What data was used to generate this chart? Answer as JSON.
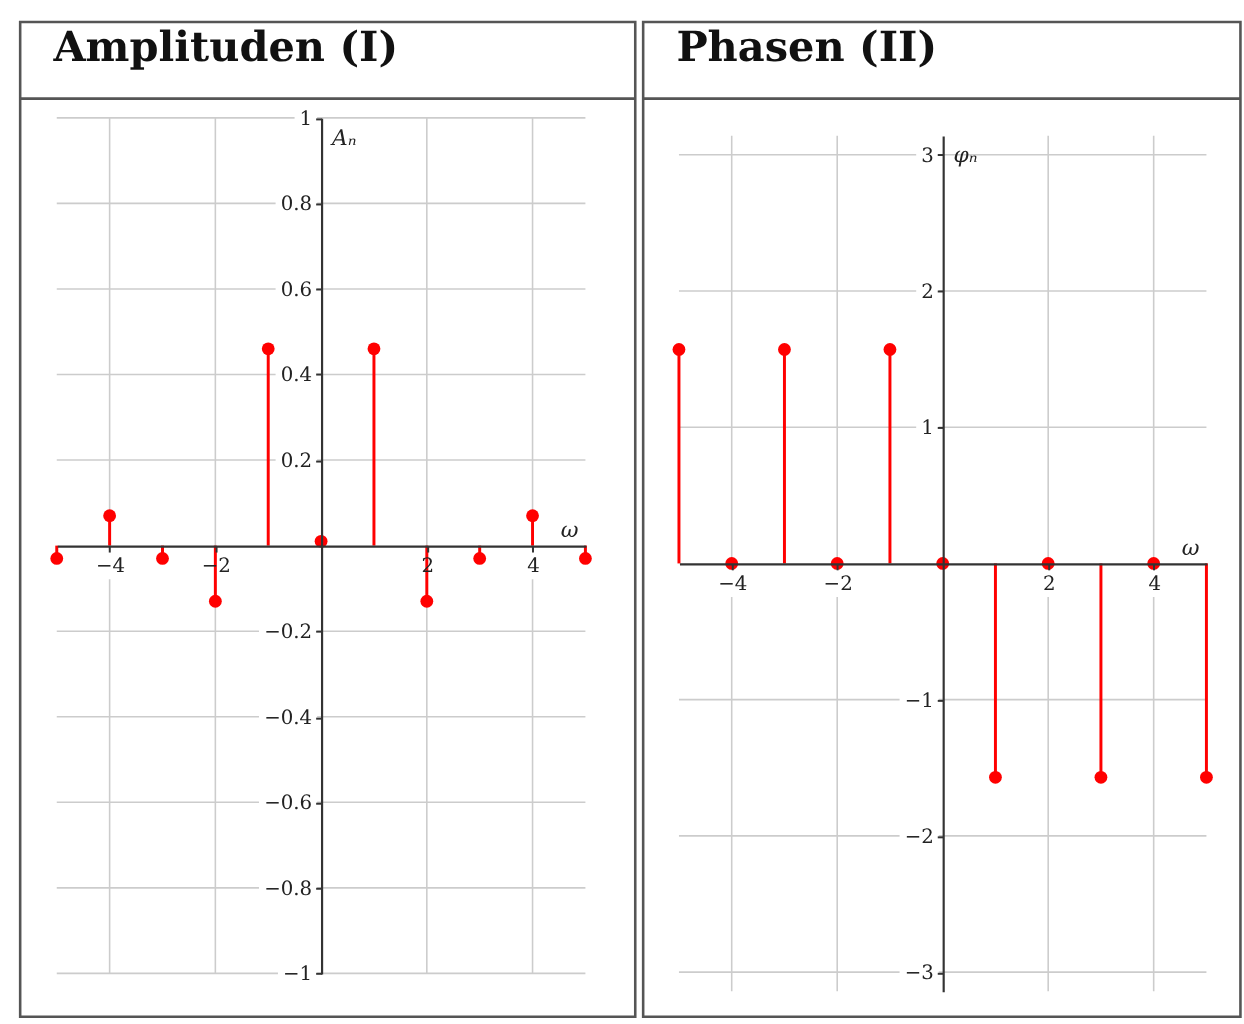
{
  "chart_data": [
    {
      "type": "lollipop",
      "title": "Amplituden (I)",
      "xlabel": "ω",
      "ylabel": "Aₙ",
      "x": [
        -5,
        -4,
        -3,
        -2,
        -1,
        0,
        1,
        2,
        3,
        4,
        5
      ],
      "values": [
        -0.03,
        0.07,
        -0.03,
        -0.13,
        0.46,
        0.01,
        0.46,
        -0.13,
        -0.03,
        0.07,
        -0.03
      ],
      "color": "#ff0000",
      "marker": "circle",
      "xlim": [
        -5,
        5
      ],
      "ylim": [
        -1,
        1
      ],
      "xticks": [
        -4,
        -2,
        2,
        4
      ],
      "yticks": [
        -1,
        -0.8,
        -0.6,
        -0.4,
        -0.2,
        0.2,
        0.4,
        0.6,
        0.8,
        1
      ],
      "grid": true
    },
    {
      "type": "lollipop",
      "title": "Phasen (II)",
      "xlabel": "ω",
      "ylabel": "φₙ",
      "x": [
        -5,
        -4,
        -3,
        -2,
        -1,
        0,
        1,
        2,
        3,
        4,
        5
      ],
      "values": [
        1.57,
        0,
        1.57,
        0,
        1.57,
        0,
        -1.57,
        0,
        -1.57,
        0,
        -1.57
      ],
      "color": "#ff0000",
      "marker": "circle",
      "xlim": [
        -5,
        5
      ],
      "ylim": [
        -3.14,
        3.14
      ],
      "xticks": [
        -4,
        -2,
        2,
        4
      ],
      "yticks": [
        -3,
        -2,
        -1,
        1,
        2,
        3
      ],
      "grid": true
    }
  ]
}
